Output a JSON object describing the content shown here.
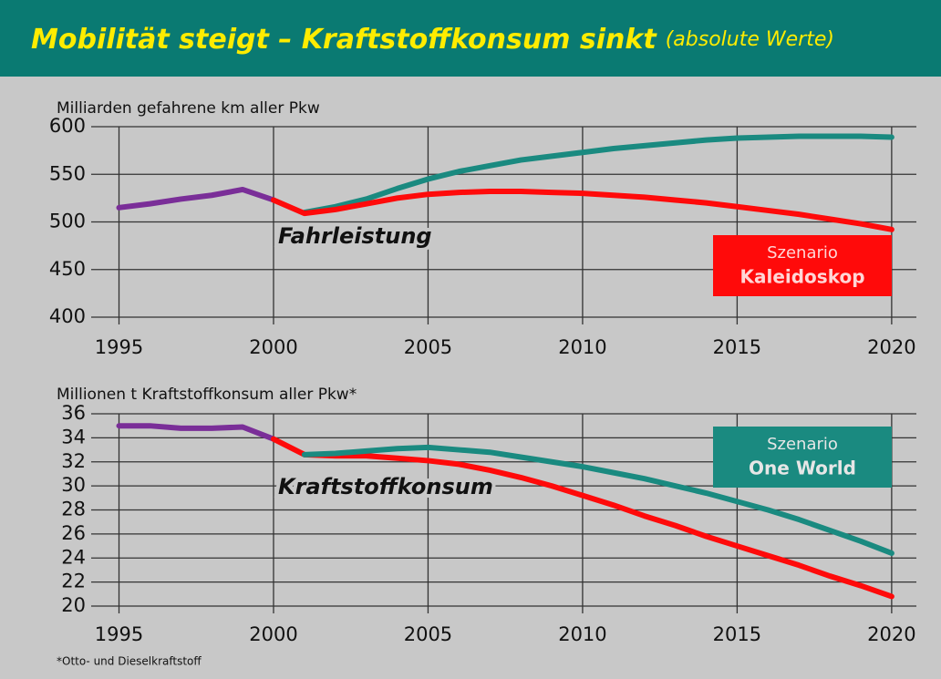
{
  "chart_data": [
    {
      "type": "line",
      "title": "Mobilität steigt – Kraftstoffkonsum sinkt",
      "subtitle": "(absolute Werte)",
      "y_label": "Milliarden gefahrene km aller Pkw",
      "annotation": "Fahrleistung",
      "legend_heading": "Szenario",
      "x": [
        1995,
        1996,
        1997,
        1998,
        1999,
        2000,
        2001,
        2002,
        2003,
        2004,
        2005,
        2006,
        2007,
        2008,
        2009,
        2010,
        2011,
        2012,
        2013,
        2014,
        2015,
        2016,
        2017,
        2018,
        2019,
        2020
      ],
      "xlim": [
        1994.1,
        2020.8
      ],
      "xticks": [
        1995,
        2000,
        2005,
        2010,
        2015,
        2020
      ],
      "ylim": [
        400,
        600
      ],
      "yticks": [
        400,
        450,
        500,
        550,
        600
      ],
      "grid": true,
      "series": [
        {
          "color": "#7a2e98",
          "values": [
            515,
            519,
            524,
            528,
            534,
            523,
            null,
            null,
            null,
            null,
            null,
            null,
            null,
            null,
            null,
            null,
            null,
            null,
            null,
            null,
            null,
            null,
            null,
            null,
            null,
            null
          ]
        },
        {
          "color": "#1a8a80",
          "values": [
            null,
            null,
            null,
            null,
            null,
            null,
            510,
            516,
            524,
            535,
            545,
            553,
            559,
            565,
            569,
            573,
            577,
            580,
            583,
            586,
            588,
            589,
            590,
            590,
            590,
            589
          ]
        },
        {
          "name": "Kaleidoskop",
          "color": "#ff0a0a",
          "values": [
            null,
            null,
            null,
            null,
            null,
            523,
            509,
            513,
            519,
            525,
            529,
            531,
            532,
            532,
            531,
            530,
            528,
            526,
            523,
            520,
            516,
            512,
            508,
            503,
            498,
            492
          ]
        }
      ]
    },
    {
      "type": "line",
      "y_label": "Millionen t Kraftstoffkonsum aller Pkw*",
      "annotation": "Kraftstoffkonsum",
      "legend_heading": "Szenario",
      "footnote": "*Otto- und Dieselkraftstoff",
      "x": [
        1995,
        1996,
        1997,
        1998,
        1999,
        2000,
        2001,
        2002,
        2003,
        2004,
        2005,
        2006,
        2007,
        2008,
        2009,
        2010,
        2011,
        2012,
        2013,
        2014,
        2015,
        2016,
        2017,
        2018,
        2019,
        2020
      ],
      "xlim": [
        1994.1,
        2020.8
      ],
      "xticks": [
        1995,
        2000,
        2005,
        2010,
        2015,
        2020
      ],
      "ylim": [
        20,
        36
      ],
      "yticks": [
        20,
        22,
        24,
        26,
        28,
        30,
        32,
        34,
        36
      ],
      "grid": true,
      "series": [
        {
          "color": "#7a2e98",
          "values": [
            35.0,
            35.0,
            34.8,
            34.8,
            34.9,
            33.9,
            null,
            null,
            null,
            null,
            null,
            null,
            null,
            null,
            null,
            null,
            null,
            null,
            null,
            null,
            null,
            null,
            null,
            null,
            null,
            null
          ]
        },
        {
          "color": "#ff0a0a",
          "values": [
            null,
            null,
            null,
            null,
            null,
            33.9,
            32.6,
            32.5,
            32.5,
            32.3,
            32.1,
            31.8,
            31.3,
            30.7,
            30.0,
            29.2,
            28.4,
            27.5,
            26.7,
            25.8,
            25.0,
            24.2,
            23.4,
            22.5,
            21.7,
            20.8
          ]
        },
        {
          "name": "One World",
          "color": "#1a8a80",
          "values": [
            null,
            null,
            null,
            null,
            null,
            null,
            32.6,
            32.7,
            32.9,
            33.1,
            33.2,
            33.0,
            32.8,
            32.4,
            32.0,
            31.6,
            31.1,
            30.6,
            30.0,
            29.4,
            28.7,
            28.0,
            27.2,
            26.3,
            25.4,
            24.4
          ]
        }
      ]
    }
  ]
}
